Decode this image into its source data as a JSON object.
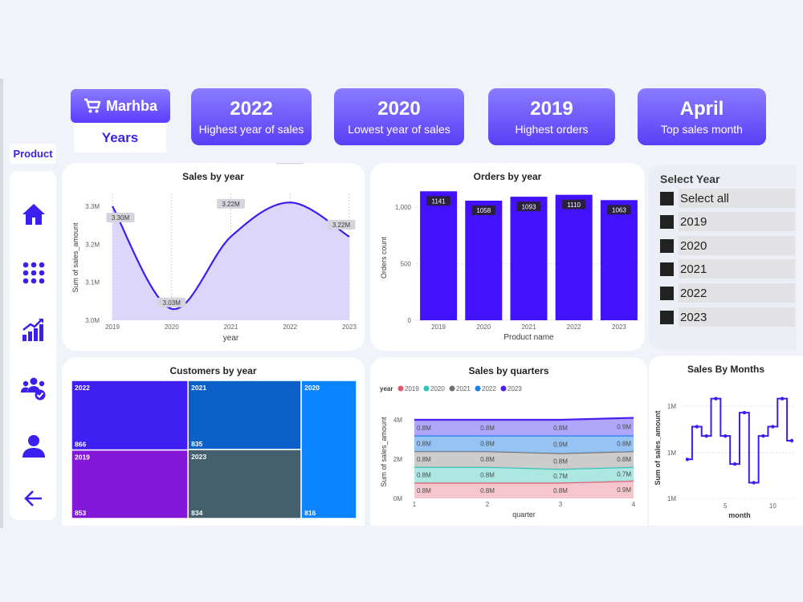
{
  "header": {
    "logo_text": "Marhba",
    "years_label": "Years",
    "product_label": "Product"
  },
  "kpis": [
    {
      "value": "2022",
      "label": "Highest year of sales"
    },
    {
      "value": "2020",
      "label": "Lowest year of sales"
    },
    {
      "value": "2019",
      "label": "Highest orders"
    },
    {
      "value": "April",
      "label": "Top sales month"
    }
  ],
  "nav": {
    "icons": [
      "home-icon",
      "grid-apps-icon",
      "growth-chart-icon",
      "team-icon",
      "user-icon",
      "back-arrow-icon"
    ]
  },
  "colors": {
    "accent": "#3b1ff0",
    "kpi_gradient_top": "#8a7bff",
    "kpi_gradient_bottom": "#5b3ef6"
  },
  "slicer": {
    "title": "Select Year",
    "items": [
      "Select all",
      "2019",
      "2020",
      "2021",
      "2022",
      "2023"
    ]
  },
  "chart_data": [
    {
      "id": "sales_by_year",
      "type": "area",
      "title": "Sales by year",
      "xlabel": "year",
      "ylabel": "Sum of sales_amount",
      "x": [
        "2019",
        "2020",
        "2021",
        "2022",
        "2023"
      ],
      "values": [
        3.3,
        3.03,
        3.22,
        3.31,
        3.22
      ],
      "data_labels": [
        "3.30M",
        "3.03M",
        "3.22M",
        "3.31M",
        "3.22M"
      ],
      "yticks": [
        "3.0M",
        "3.1M",
        "3.2M",
        "3.3M"
      ],
      "ylim": [
        3.0,
        3.3
      ],
      "grid": true
    },
    {
      "id": "orders_by_year",
      "type": "bar",
      "title": "Orders by year",
      "xlabel": "Product name",
      "ylabel": "Orders count",
      "categories": [
        "2019",
        "2020",
        "2021",
        "2022",
        "2023"
      ],
      "values": [
        1141,
        1058,
        1093,
        1110,
        1063
      ],
      "yticks": [
        "0",
        "500",
        "1,000"
      ],
      "ylim": [
        0,
        1200
      ]
    },
    {
      "id": "customers_by_year",
      "type": "heatmap",
      "title": "Customers by year",
      "tiles": [
        {
          "name": "2022",
          "value": 866,
          "color": "#3f1ff2"
        },
        {
          "name": "2019",
          "value": 853,
          "color": "#8418d9"
        },
        {
          "name": "2021",
          "value": 835,
          "color": "#0b5fc7"
        },
        {
          "name": "2023",
          "value": 834,
          "color": "#44606f"
        },
        {
          "name": "2020",
          "value": 816,
          "color": "#0a84ff"
        }
      ]
    },
    {
      "id": "sales_by_quarters",
      "type": "area",
      "title": "Sales by quarters",
      "legend_title": "year",
      "legend_position": "top-left",
      "xlabel": "quarter",
      "ylabel": "Sum of sales_amount",
      "x": [
        "1",
        "2",
        "3",
        "4"
      ],
      "yticks": [
        "0M",
        "2M",
        "4M"
      ],
      "series": [
        {
          "name": "2019",
          "color": "#e0566c",
          "values": [
            0.8,
            0.8,
            0.8,
            0.9
          ],
          "labels": [
            "0.8M",
            "0.8M",
            "0.8M",
            "0.9M"
          ]
        },
        {
          "name": "2020",
          "color": "#2ec4b6",
          "values": [
            0.8,
            0.8,
            0.7,
            0.7
          ],
          "labels": [
            "0.8M",
            "0.8M",
            "0.7M",
            "0.7M"
          ]
        },
        {
          "name": "2021",
          "color": "#707070",
          "values": [
            0.8,
            0.8,
            0.8,
            0.8
          ],
          "labels": [
            "0.8M",
            "0.8M",
            "0.8M",
            "0.8M"
          ]
        },
        {
          "name": "2022",
          "color": "#1b7fe8",
          "values": [
            0.8,
            0.8,
            0.9,
            0.8
          ],
          "labels": [
            "0.8M",
            "0.8M",
            "0.9M",
            "0.8M"
          ]
        },
        {
          "name": "2023",
          "color": "#4a1ff0",
          "values": [
            0.8,
            0.8,
            0.8,
            0.9
          ],
          "labels": [
            "0.8M",
            "0.8M",
            "0.8M",
            "0.9M"
          ]
        }
      ]
    },
    {
      "id": "sales_by_months",
      "type": "line",
      "title": "Sales By Months",
      "xlabel": "month",
      "ylabel": "Sum of sales_amount",
      "x": [
        1,
        2,
        3,
        4,
        5,
        6,
        7,
        8,
        9,
        10,
        11,
        12
      ],
      "values": [
        0.99,
        1.06,
        1.04,
        1.12,
        1.04,
        0.98,
        1.09,
        0.94,
        1.04,
        1.06,
        1.12,
        1.03
      ],
      "xticks": [
        "5",
        "10"
      ],
      "yticks": [
        "1M",
        "1M",
        "1M"
      ]
    }
  ]
}
